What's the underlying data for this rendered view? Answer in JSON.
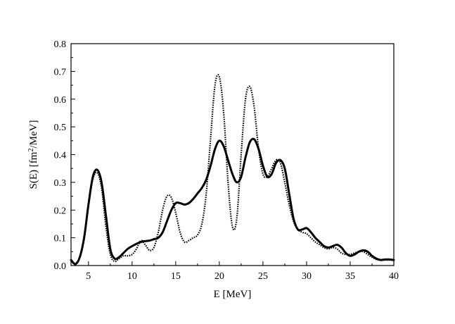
{
  "chart_data": {
    "type": "line",
    "xlabel": "E [MeV]",
    "ylabel_parts": [
      "S(E) [fm",
      "2",
      "/MeV]"
    ],
    "xlim": [
      3,
      40
    ],
    "ylim": [
      0,
      0.8
    ],
    "x_ticks": [
      5,
      10,
      15,
      20,
      25,
      30,
      35,
      40
    ],
    "x_tick_labels": [
      "5",
      "10",
      "15",
      "20",
      "25",
      "30",
      "35",
      "40"
    ],
    "y_ticks": [
      0.0,
      0.1,
      0.2,
      0.3,
      0.4,
      0.5,
      0.6,
      0.7,
      0.8
    ],
    "y_tick_labels": [
      "0.0",
      "0.1",
      "0.2",
      "0.3",
      "0.4",
      "0.5",
      "0.6",
      "0.7",
      "0.8"
    ],
    "grid": false,
    "series": [
      {
        "style": "solid",
        "color": "#000000",
        "x": [
          3.0,
          3.5,
          4.0,
          4.5,
          5.0,
          5.5,
          6.0,
          6.5,
          7.0,
          7.5,
          8.0,
          8.5,
          9.0,
          9.5,
          10.0,
          11.0,
          12.0,
          12.5,
          13.0,
          13.5,
          14.0,
          14.5,
          15.0,
          15.5,
          16.0,
          16.5,
          17.0,
          17.5,
          18.0,
          18.5,
          19.0,
          19.5,
          20.0,
          20.5,
          21.0,
          21.5,
          22.0,
          22.5,
          23.0,
          23.5,
          24.0,
          24.5,
          25.0,
          25.5,
          26.0,
          26.5,
          27.0,
          27.5,
          28.0,
          28.5,
          29.0,
          29.5,
          30.0,
          30.5,
          31.0,
          31.5,
          32.0,
          32.5,
          33.0,
          33.5,
          34.0,
          34.5,
          35.0,
          35.5,
          36.0,
          36.5,
          37.0,
          37.5,
          38.0,
          38.5,
          39.0,
          39.5,
          40.0
        ],
        "y": [
          0.02,
          0.005,
          0.03,
          0.1,
          0.22,
          0.32,
          0.345,
          0.3,
          0.18,
          0.06,
          0.025,
          0.03,
          0.045,
          0.06,
          0.07,
          0.085,
          0.09,
          0.095,
          0.1,
          0.12,
          0.16,
          0.2,
          0.225,
          0.225,
          0.22,
          0.225,
          0.24,
          0.26,
          0.28,
          0.31,
          0.36,
          0.42,
          0.45,
          0.43,
          0.38,
          0.33,
          0.3,
          0.32,
          0.39,
          0.445,
          0.455,
          0.42,
          0.36,
          0.32,
          0.33,
          0.37,
          0.38,
          0.35,
          0.26,
          0.17,
          0.13,
          0.13,
          0.135,
          0.12,
          0.1,
          0.085,
          0.07,
          0.065,
          0.07,
          0.075,
          0.065,
          0.045,
          0.035,
          0.04,
          0.05,
          0.055,
          0.05,
          0.035,
          0.025,
          0.02,
          0.022,
          0.022,
          0.02
        ]
      },
      {
        "style": "dotted",
        "color": "#000000",
        "x": [
          3.0,
          3.5,
          4.0,
          4.5,
          5.0,
          5.5,
          6.0,
          6.5,
          7.0,
          7.5,
          8.0,
          8.5,
          9.0,
          9.5,
          10.0,
          10.5,
          11.0,
          11.5,
          12.0,
          12.5,
          13.0,
          13.5,
          14.0,
          14.5,
          15.0,
          15.5,
          16.0,
          16.5,
          17.0,
          17.5,
          18.0,
          18.5,
          19.0,
          19.5,
          20.0,
          20.5,
          21.0,
          21.5,
          22.0,
          22.5,
          23.0,
          23.5,
          24.0,
          24.5,
          25.0,
          25.5,
          26.0,
          26.5,
          27.0,
          27.5,
          28.0,
          28.5,
          29.0,
          29.5,
          30.0,
          30.5,
          31.0,
          31.5,
          32.0,
          32.5,
          33.0,
          33.5,
          34.0,
          34.5,
          35.0,
          35.5,
          36.0,
          36.5,
          37.0,
          37.5,
          38.0,
          38.5,
          39.0,
          39.5,
          40.0
        ],
        "y": [
          0.02,
          0.008,
          0.03,
          0.1,
          0.22,
          0.31,
          0.335,
          0.28,
          0.14,
          0.04,
          0.015,
          0.025,
          0.035,
          0.035,
          0.04,
          0.06,
          0.09,
          0.075,
          0.055,
          0.065,
          0.12,
          0.2,
          0.25,
          0.245,
          0.19,
          0.12,
          0.085,
          0.09,
          0.1,
          0.11,
          0.15,
          0.26,
          0.46,
          0.65,
          0.68,
          0.55,
          0.3,
          0.14,
          0.17,
          0.4,
          0.6,
          0.645,
          0.57,
          0.42,
          0.33,
          0.32,
          0.35,
          0.38,
          0.37,
          0.3,
          0.22,
          0.16,
          0.13,
          0.12,
          0.115,
          0.1,
          0.085,
          0.075,
          0.065,
          0.06,
          0.065,
          0.06,
          0.045,
          0.04,
          0.04,
          0.045,
          0.05,
          0.05,
          0.04,
          0.03,
          0.022,
          0.02,
          0.02,
          0.02,
          0.02
        ]
      }
    ]
  }
}
